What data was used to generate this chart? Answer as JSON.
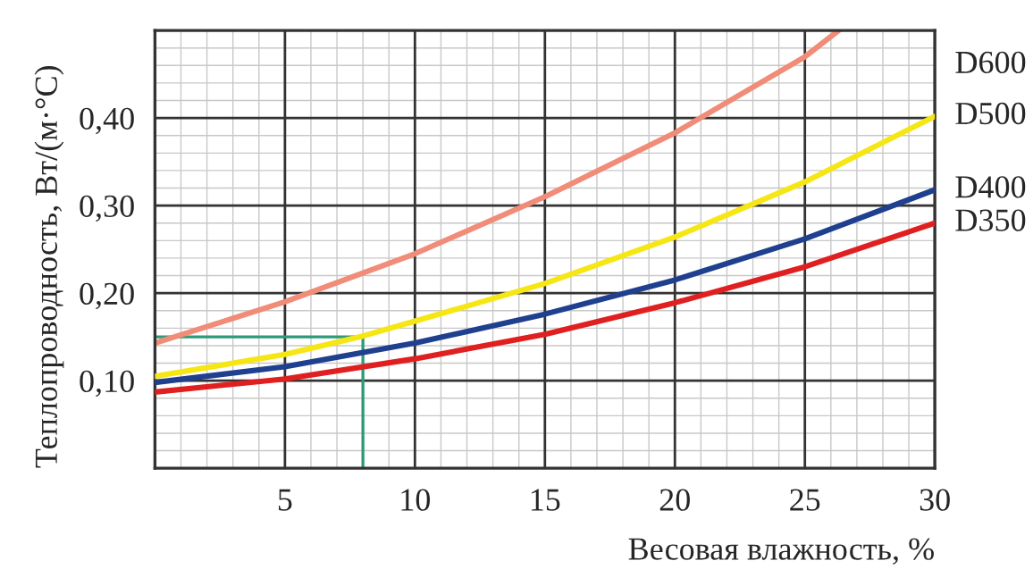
{
  "chart_data": {
    "type": "line",
    "xlabel": "Весовая влажность, %",
    "ylabel": "Теплопроводность, Вт/(м·°С)",
    "xlim": [
      0,
      30
    ],
    "xticks": [
      5,
      10,
      15,
      20,
      25,
      30
    ],
    "ylim": [
      0,
      0.5
    ],
    "yticks": [
      {
        "value": 0.1,
        "label": "0,10"
      },
      {
        "value": 0.2,
        "label": "0,20"
      },
      {
        "value": 0.3,
        "label": "0,30"
      },
      {
        "value": 0.4,
        "label": "0,40"
      }
    ],
    "grid": true,
    "legend": false,
    "marker": "none",
    "line_style": "solid",
    "series": [
      {
        "name": "D600",
        "color": "#f08c78",
        "x": [
          0,
          5,
          10,
          15,
          20,
          25,
          26.3
        ],
        "values": [
          0.143,
          0.19,
          0.245,
          0.31,
          0.383,
          0.47,
          0.5
        ]
      },
      {
        "name": "D500",
        "color": "#f5e614",
        "x": [
          0,
          5,
          8,
          10,
          15,
          20,
          25,
          30
        ],
        "values": [
          0.105,
          0.13,
          0.151,
          0.168,
          0.211,
          0.264,
          0.327,
          0.402
        ]
      },
      {
        "name": "D400",
        "color": "#1f3f8f",
        "x": [
          0,
          5,
          10,
          15,
          20,
          25,
          30
        ],
        "values": [
          0.098,
          0.116,
          0.143,
          0.176,
          0.215,
          0.262,
          0.318
        ]
      },
      {
        "name": "D350",
        "color": "#e02020",
        "x": [
          0,
          5,
          10,
          15,
          20,
          25,
          30
        ],
        "values": [
          0.087,
          0.102,
          0.125,
          0.153,
          0.189,
          0.23,
          0.28
        ]
      }
    ],
    "ref_lines": [
      {
        "axis": "y",
        "value": 0.15,
        "color": "#2e9a7a"
      },
      {
        "axis": "x",
        "value": 8,
        "color": "#2e9a7a"
      }
    ]
  }
}
